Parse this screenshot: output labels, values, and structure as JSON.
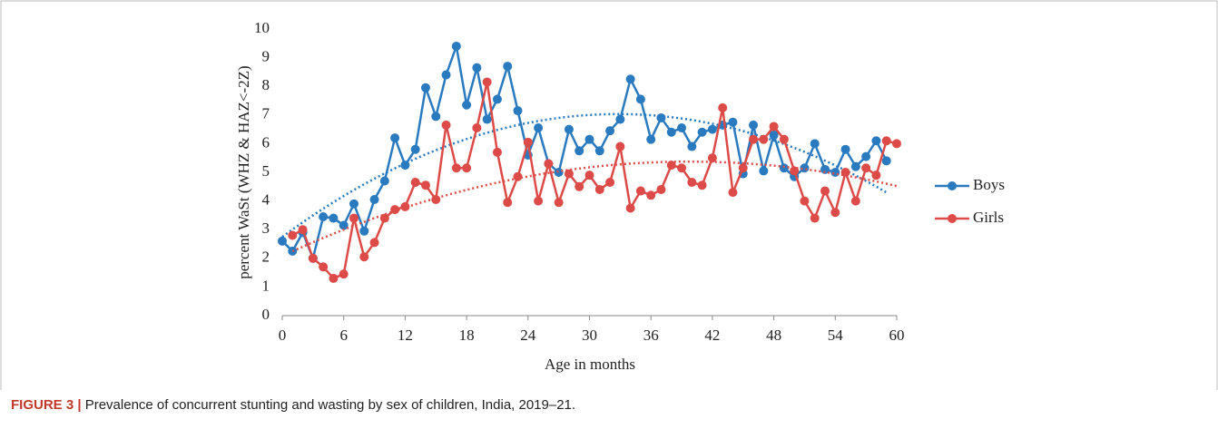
{
  "chart_data": {
    "type": "line",
    "y_label": "percent WaSt (WHZ & HAZ<-2Z)",
    "x_label": "Age in months",
    "x": [
      0,
      1,
      2,
      3,
      4,
      5,
      6,
      7,
      8,
      9,
      10,
      11,
      12,
      13,
      14,
      15,
      16,
      17,
      18,
      19,
      20,
      21,
      22,
      23,
      24,
      25,
      26,
      27,
      28,
      29,
      30,
      31,
      32,
      33,
      34,
      35,
      36,
      37,
      38,
      39,
      40,
      41,
      42,
      43,
      44,
      45,
      46,
      47,
      48,
      49,
      50,
      51,
      52,
      53,
      54,
      55,
      56,
      57,
      58,
      59,
      60
    ],
    "series": [
      {
        "name": "Boys",
        "color": "#2a7abf",
        "values": [
          2.6,
          2.25,
          2.9,
          2.0,
          3.45,
          3.4,
          3.15,
          3.9,
          2.95,
          4.05,
          4.7,
          6.2,
          5.25,
          5.8,
          7.95,
          6.95,
          8.4,
          9.4,
          7.35,
          8.65,
          6.85,
          7.55,
          8.7,
          7.15,
          5.6,
          6.55,
          5.3,
          5.0,
          6.5,
          5.75,
          6.15,
          5.75,
          6.45,
          6.85,
          8.25,
          7.55,
          6.15,
          6.9,
          6.4,
          6.55,
          5.9,
          6.4,
          6.5,
          6.65,
          6.75,
          4.95,
          6.65,
          5.05,
          6.3,
          5.15,
          4.85,
          5.15,
          6.0,
          5.1,
          5.0,
          5.8,
          5.2,
          5.55,
          6.1,
          5.4,
          null
        ]
      },
      {
        "name": "Girls",
        "color": "#dc4b47",
        "values": [
          null,
          2.8,
          3.0,
          2.0,
          1.7,
          1.3,
          1.45,
          3.4,
          2.05,
          2.55,
          3.4,
          3.7,
          3.8,
          4.65,
          4.55,
          4.05,
          6.65,
          5.15,
          5.15,
          6.55,
          8.15,
          5.7,
          3.95,
          4.85,
          6.05,
          4.0,
          5.3,
          3.95,
          4.95,
          4.5,
          4.9,
          4.4,
          4.65,
          5.9,
          3.75,
          4.35,
          4.2,
          4.4,
          5.25,
          5.15,
          4.65,
          4.55,
          5.5,
          7.25,
          4.3,
          5.15,
          6.15,
          6.15,
          6.6,
          6.15,
          5.05,
          4.0,
          3.4,
          4.35,
          3.6,
          5.0,
          4.0,
          5.15,
          4.9,
          6.1,
          6.0
        ]
      }
    ],
    "trendline": "poly2",
    "xlim": [
      0,
      60
    ],
    "xticks": [
      0,
      6,
      12,
      18,
      24,
      30,
      36,
      42,
      48,
      54,
      60
    ],
    "ylim": [
      0,
      10
    ],
    "yticks": [
      0,
      1,
      2,
      3,
      4,
      5,
      6,
      7,
      8,
      9,
      10
    ],
    "legend": "right"
  },
  "caption_label": "FIGURE 3 |",
  "caption_text": "Prevalence of concurrent stunting and wasting by sex of children, India, 2019–21."
}
